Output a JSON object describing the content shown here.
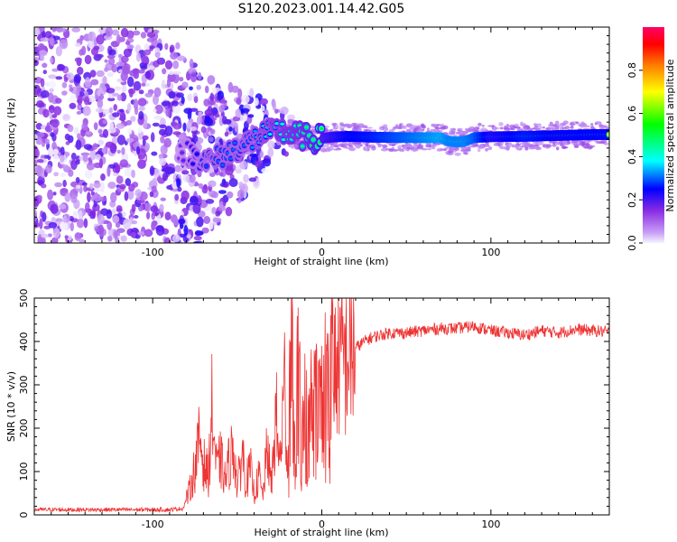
{
  "title": "S120.2023.001.14.42.G05",
  "chart_data": [
    {
      "type": "heatmap",
      "xlabel": "Height of straight line (km)",
      "ylabel": "Frequency (Hz)",
      "xlim": [
        -170,
        170
      ],
      "ylim": [
        -25,
        25
      ],
      "xticks": [
        -100,
        0,
        100
      ],
      "yticks": [
        -20,
        -10,
        0,
        10,
        20
      ],
      "colorbar": {
        "label": "Normalized spectral amplitude",
        "range": [
          0,
          1
        ],
        "ticks": [
          "0.0",
          "0.2",
          "0.4",
          "0.6",
          "0.8"
        ],
        "colors": [
          "#f4f4ff",
          "#8a2be2",
          "#0000ff",
          "#00ffff",
          "#00ff00",
          "#ffff00",
          "#ff8000",
          "#ff0000",
          "#ff0066"
        ]
      },
      "ridge": {
        "x": [
          -85,
          -75,
          -65,
          -55,
          -45,
          -35,
          -25,
          -15,
          -5,
          5,
          15,
          30,
          50,
          70,
          75,
          80,
          85,
          90,
          100,
          120,
          140,
          160,
          170
        ],
        "freq": [
          -3,
          -5,
          -6,
          -4,
          -2,
          0,
          1,
          0,
          -1,
          -0.5,
          -0.3,
          -0.5,
          -0.6,
          -0.6,
          -1.4,
          -1.6,
          -1.4,
          -0.6,
          -0.4,
          -0.3,
          -0.1,
          0.1,
          0.1
        ],
        "amplitude": [
          0.15,
          0.25,
          0.3,
          0.3,
          0.3,
          0.35,
          0.4,
          0.45,
          0.5,
          0.6,
          0.7,
          0.75,
          0.85,
          0.95,
          0.9,
          0.9,
          0.9,
          0.85,
          0.65,
          0.75,
          0.7,
          0.72,
          0.7
        ]
      }
    },
    {
      "type": "line",
      "xlabel": "Height of straight line (km)",
      "ylabel": "SNR (10 * v/v)",
      "xlim": [
        -170,
        170
      ],
      "ylim": [
        0,
        500
      ],
      "xticks": [
        -100,
        0,
        100
      ],
      "yticks": [
        0,
        100,
        200,
        300,
        400,
        500
      ],
      "series": [
        {
          "color": "#ee3333",
          "x": [
            -170,
            -150,
            -130,
            -110,
            -90,
            -82,
            -78,
            -75,
            -72,
            -70,
            -67,
            -65,
            -62,
            -60,
            -57,
            -55,
            -52,
            -50,
            -47,
            -45,
            -42,
            -40,
            -37,
            -35,
            -32,
            -30,
            -27,
            -25,
            -22,
            -20,
            -18,
            -16,
            -14,
            -12,
            -10,
            -8,
            -6,
            -4,
            -2,
            0,
            2,
            4,
            6,
            8,
            10,
            12,
            15,
            18,
            20,
            25,
            30,
            40,
            50,
            60,
            70,
            80,
            90,
            100,
            110,
            120,
            130,
            140,
            150,
            160,
            170
          ],
          "y": [
            12,
            12,
            12,
            12,
            12,
            15,
            60,
            110,
            180,
            120,
            90,
            240,
            100,
            130,
            80,
            120,
            160,
            60,
            150,
            80,
            100,
            50,
            90,
            40,
            160,
            60,
            230,
            110,
            300,
            100,
            480,
            150,
            470,
            180,
            280,
            200,
            340,
            260,
            360,
            300,
            340,
            330,
            360,
            340,
            370,
            350,
            370,
            380,
            385,
            400,
            410,
            420,
            420,
            425,
            430,
            430,
            435,
            425,
            420,
            415,
            425,
            420,
            428,
            425,
            422
          ]
        }
      ]
    }
  ]
}
